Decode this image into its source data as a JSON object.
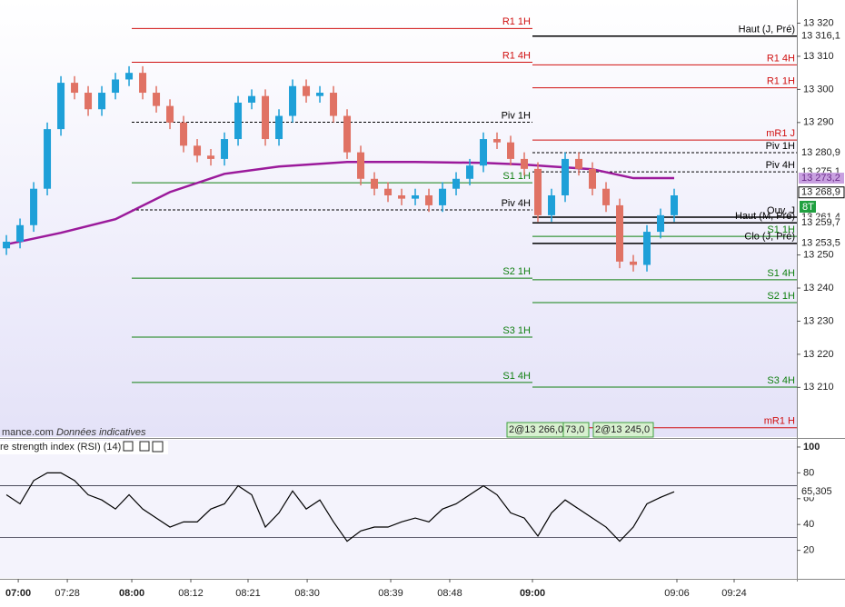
{
  "chart_data": [
    {
      "type": "candlestick",
      "xlim": [
        -0.47,
        58
      ],
      "ylim": [
        13195,
        13327
      ],
      "yticks": [
        {
          "value": 13320,
          "label": "13 320"
        },
        {
          "value": 13310,
          "label": "13 310"
        },
        {
          "value": 13300,
          "label": "13 300"
        },
        {
          "value": 13290,
          "label": "13 290"
        },
        {
          "value": 13250,
          "label": "13 250"
        },
        {
          "value": 13240,
          "label": "13 240"
        },
        {
          "value": 13230,
          "label": "13 230"
        },
        {
          "value": 13220,
          "label": "13 220"
        },
        {
          "value": 13210,
          "label": "13 210"
        }
      ],
      "up_color": "#1ea0d8",
      "down_color": "#e07264",
      "open": [
        13252,
        13254,
        13259,
        13270,
        13288,
        13302,
        13299,
        13294,
        13299,
        13303,
        13305,
        13299,
        13295,
        13290,
        13283,
        13280,
        13279,
        13285,
        13296,
        13298,
        13285,
        13292,
        13301,
        13298,
        13299,
        13292,
        13281,
        13273,
        13270,
        13268,
        13267,
        13268,
        13265,
        13270,
        13273,
        13277,
        13285,
        13284,
        13279,
        13276,
        13262,
        13268,
        13279,
        13276,
        13270,
        13265,
        13248,
        13247,
        13257,
        13262
      ],
      "high": [
        13256,
        13261,
        13272,
        13290,
        13304,
        13304,
        13301,
        13301,
        13305,
        13307,
        13307,
        13301,
        13297,
        13292,
        13285,
        13282,
        13287,
        13298,
        13300,
        13300,
        13294,
        13303,
        13303,
        13301,
        13301,
        13294,
        13283,
        13275,
        13272,
        13270,
        13270,
        13270,
        13272,
        13275,
        13279,
        13287,
        13287,
        13286,
        13281,
        13278,
        13270,
        13281,
        13281,
        13278,
        13272,
        13267,
        13250,
        13259,
        13264,
        13270
      ],
      "low": [
        13250,
        13252,
        13257,
        13268,
        13286,
        13297,
        13292,
        13292,
        13297,
        13301,
        13297,
        13293,
        13288,
        13281,
        13278,
        13277,
        13277,
        13283,
        13294,
        13283,
        13283,
        13290,
        13296,
        13296,
        13290,
        13279,
        13271,
        13268,
        13266,
        13265,
        13265,
        13263,
        13263,
        13268,
        13271,
        13275,
        13282,
        13277,
        13274,
        13260,
        13260,
        13266,
        13274,
        13268,
        13263,
        13246,
        13245,
        13245,
        13255,
        13260
      ],
      "close": [
        13254,
        13259,
        13270,
        13288,
        13302,
        13299,
        13294,
        13299,
        13303,
        13305,
        13299,
        13295,
        13290,
        13283,
        13280,
        13279,
        13285,
        13296,
        13298,
        13285,
        13292,
        13301,
        13298,
        13299,
        13292,
        13281,
        13273,
        13270,
        13268,
        13267,
        13268,
        13265,
        13270,
        13273,
        13277,
        13285,
        13284,
        13279,
        13276,
        13262,
        13268,
        13279,
        13276,
        13270,
        13265,
        13248,
        13247,
        13257,
        13262,
        13268
      ],
      "vwap": {
        "color": "#9b1a9b",
        "x": [
          0,
          4,
          8,
          12,
          16,
          20,
          25,
          30,
          35,
          38,
          40,
          43,
          46,
          49
        ],
        "values": [
          13253.2,
          13256.7,
          13260.8,
          13269.0,
          13274.5,
          13276.7,
          13278.1,
          13278.1,
          13277.8,
          13277.3,
          13276.7,
          13275.9,
          13273.2,
          13273.2
        ]
      },
      "left_levels": [
        {
          "label": "R1 1H",
          "value": 13318.4,
          "color": "#d01010",
          "dashed": false
        },
        {
          "label": "R1 4H",
          "value": 13308.2,
          "color": "#d01010",
          "dashed": false
        },
        {
          "label": "Piv 1H",
          "value": 13290.1,
          "color": "#000000",
          "dashed": true
        },
        {
          "label": "S1 1H",
          "value": 13271.8,
          "color": "#108010",
          "dashed": false
        },
        {
          "label": "Piv 4H",
          "value": 13263.6,
          "color": "#000000",
          "dashed": true
        },
        {
          "label": "S2 1H",
          "value": 13243.0,
          "color": "#108010",
          "dashed": false
        },
        {
          "label": "S3 1H",
          "value": 13225.2,
          "color": "#108010",
          "dashed": false
        },
        {
          "label": "S1 4H",
          "value": 13211.5,
          "color": "#108010",
          "dashed": false
        }
      ],
      "right_levels": [
        {
          "label": "Haut (J, Pré)",
          "value": 13316.1,
          "color": "#000000",
          "dashed": false
        },
        {
          "label": "R1 4H",
          "value": 13307.4,
          "color": "#d01010",
          "dashed": false
        },
        {
          "label": "R1 1H",
          "value": 13300.5,
          "color": "#d01010",
          "dashed": false
        },
        {
          "label": "mR1 J",
          "value": 13284.7,
          "color": "#d01010",
          "dashed": false
        },
        {
          "label": "Piv 1H",
          "value": 13280.9,
          "color": "#000000",
          "dashed": true
        },
        {
          "label": "Piv 4H",
          "value": 13275.1,
          "color": "#000000",
          "dashed": true
        },
        {
          "label": "Ouv. J",
          "value": 13261.4,
          "color": "#000000",
          "dashed": false
        },
        {
          "label": "Haut (M, Pré)",
          "value": 13259.7,
          "color": "#000000",
          "dashed": false
        },
        {
          "label": "S1 1H",
          "value": 13255.6,
          "color": "#108010",
          "dashed": false
        },
        {
          "label": "Clo (J, Pré)",
          "value": 13253.5,
          "color": "#000000",
          "dashed": false
        },
        {
          "label": "S1 4H",
          "value": 13242.5,
          "color": "#108010",
          "dashed": false
        },
        {
          "label": "S2 1H",
          "value": 13235.6,
          "color": "#108010",
          "dashed": false
        },
        {
          "label": "S3 4H",
          "value": 13210.1,
          "color": "#108010",
          "dashed": false
        },
        {
          "label": "mR1 H",
          "value": 13197.8,
          "color": "#d01010",
          "dashed": false
        }
      ],
      "price_labels": [
        {
          "value": 13316.1,
          "label": "13 316,1"
        },
        {
          "value": 13280.9,
          "label": "13 280,9"
        },
        {
          "value": 13275.1,
          "label": "13 275,1"
        },
        {
          "value": 13273.2,
          "label": "13 273,2"
        },
        {
          "value": 13268.9,
          "label": "13 268,9"
        },
        {
          "value": 13261.4,
          "label": "13 261,4"
        },
        {
          "value": 13259.7,
          "label": "13 259,7"
        },
        {
          "value": 13253.5,
          "label": "13 253,5"
        }
      ],
      "tag": "8T",
      "annotations": [
        "mance.com",
        "Données indicatives",
        "2@13 266,0",
        "73,0",
        "2@13 245,0"
      ]
    },
    {
      "type": "line",
      "title": "re strength index (RSI) (14)",
      "color": "#000000",
      "xlim": [
        -0.47,
        58
      ],
      "ylim": [
        -1.4,
        105.6
      ],
      "yticks": [
        20,
        40,
        60,
        80,
        100
      ],
      "ref_lines": [
        30,
        70
      ],
      "values": [
        63,
        56,
        74,
        80,
        80,
        74,
        63,
        59,
        52,
        63,
        52,
        45,
        38,
        42,
        42,
        52,
        56,
        70,
        63,
        38,
        49,
        66,
        52,
        59,
        42,
        27,
        35,
        38,
        38,
        42,
        45,
        42,
        52,
        56,
        63,
        70,
        63,
        49,
        45,
        31,
        49,
        59,
        52,
        45,
        38,
        27,
        38,
        56,
        61,
        65.305
      ],
      "last_label": {
        "value": 65.305,
        "label": "65,305"
      },
      "xticks": [
        {
          "value": 0.87,
          "label": "07:00"
        },
        {
          "value": 4.47,
          "label": "07:28"
        },
        {
          "value": 9.2,
          "label": "08:00"
        },
        {
          "value": 13.53,
          "label": "08:12"
        },
        {
          "value": 17.73,
          "label": "08:21"
        },
        {
          "value": 22.07,
          "label": "08:30"
        },
        {
          "value": 28.2,
          "label": "08:39"
        },
        {
          "value": 32.53,
          "label": "08:48"
        },
        {
          "value": 38.6,
          "label": "09:00"
        },
        {
          "value": 49.2,
          "label": "09:06"
        },
        {
          "value": 53.4,
          "label": "09:24"
        }
      ]
    }
  ]
}
